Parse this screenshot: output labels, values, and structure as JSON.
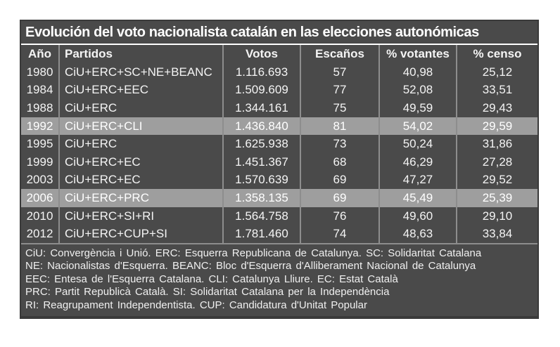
{
  "title": "Evolución del voto nacionalista catalán en las elecciones autonómicas",
  "colors": {
    "page_bg": "#ffffff",
    "panel_bg": "#4a4a4a",
    "panel_border": "#3a3a3a",
    "highlight_row_bg": "#9e9e9e",
    "text": "#f4f4f4",
    "separator": "#8d8d8d",
    "title_rule": "#ffffff"
  },
  "chart_data": {
    "type": "table",
    "title": "Evolución del voto nacionalista catalán en las elecciones autonómicas",
    "columns": [
      "Año",
      "Partidos",
      "Votos",
      "Escaños",
      "% votantes",
      "% censo"
    ],
    "rows": [
      [
        "1980",
        "CiU+ERC+SC+NE+BEANC",
        "1.116.693",
        "57",
        "40,98",
        "25,12"
      ],
      [
        "1984",
        "CiU+ERC+EEC",
        "1.509.609",
        "77",
        "52,08",
        "33,51"
      ],
      [
        "1988",
        "CiU+ERC",
        "1.344.161",
        "75",
        "49,59",
        "29,43"
      ],
      [
        "1992",
        "CiU+ERC+CLI",
        "1.436.840",
        "81",
        "54,02",
        "29,59"
      ],
      [
        "1995",
        "CiU+ERC",
        "1.625.938",
        "73",
        "50,24",
        "31,86"
      ],
      [
        "1999",
        "CiU+ERC+EC",
        "1.451.367",
        "68",
        "46,29",
        "27,28"
      ],
      [
        "2003",
        "CiU+ERC+EC",
        "1.570.639",
        "69",
        "47,27",
        "29,52"
      ],
      [
        "2006",
        "CiU+ERC+PRC",
        "1.358.135",
        "69",
        "45,49",
        "25,39"
      ],
      [
        "2010",
        "CiU+ERC+SI+RI",
        "1.564.758",
        "76",
        "49,60",
        "29,10"
      ],
      [
        "2012",
        "CiU+ERC+CUP+SI",
        "1.781.460",
        "74",
        "48,63",
        "33,84"
      ]
    ],
    "highlighted_rows": [
      3,
      7
    ],
    "layout": {
      "grid": "column separators only",
      "legend_position": "none"
    }
  },
  "footnotes": [
    "CiU: Convergència i Unió. ERC: Esquerra Republicana de Catalunya. SC: Solidaritat Catalana",
    "NE: Nacionalistas d'Esquerra. BEANC: Bloc d'Esquerra d'Alliberament Nacional de Catalunya",
    "EEC: Entesa de l'Esquerra Catalana. CLI: Catalunya Lliure. EC: Estat Català",
    "PRC: Partit Republicà Català. SI: Solidaritat Catalana per la Independència",
    "RI: Reagrupament Independentista. CUP: Candidatura d'Unitat Popular"
  ]
}
